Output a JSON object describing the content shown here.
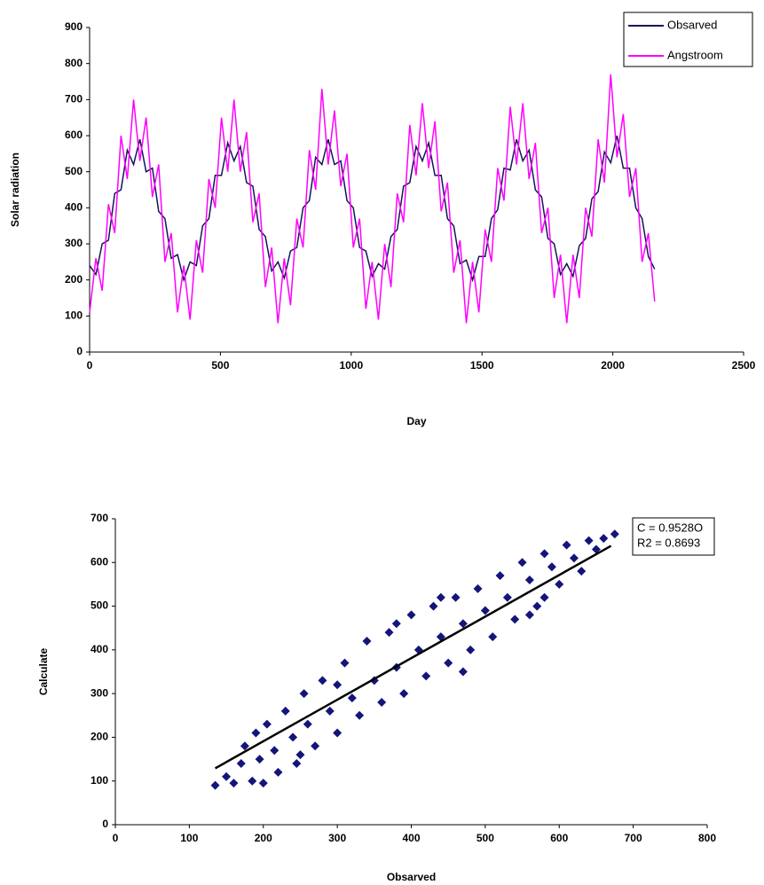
{
  "charts": [
    {
      "type": "line",
      "xlabel": "Day",
      "ylabel": "Solar radiation",
      "xlim": [
        0,
        2500
      ],
      "xticks": [
        0,
        500,
        1000,
        1500,
        2000,
        2500
      ],
      "ylim": [
        0,
        900
      ],
      "yticks": [
        0,
        100,
        200,
        300,
        400,
        500,
        600,
        700,
        800,
        900
      ],
      "legend": "upper right",
      "x": [
        0,
        24,
        48,
        72,
        96,
        120,
        144,
        168,
        192,
        216,
        240,
        264,
        288,
        312,
        336,
        360,
        384,
        408,
        432,
        456,
        480,
        504,
        528,
        552,
        576,
        600,
        624,
        648,
        672,
        696,
        720,
        744,
        768,
        792,
        816,
        840,
        864,
        888,
        912,
        936,
        960,
        984,
        1008,
        1032,
        1056,
        1080,
        1104,
        1128,
        1152,
        1176,
        1200,
        1224,
        1248,
        1272,
        1296,
        1320,
        1344,
        1368,
        1392,
        1416,
        1440,
        1464,
        1488,
        1512,
        1536,
        1560,
        1584,
        1608,
        1632,
        1656,
        1680,
        1704,
        1728,
        1752,
        1776,
        1800,
        1824,
        1848,
        1872,
        1896,
        1920,
        1944,
        1968,
        1992,
        2016,
        2040,
        2064,
        2088,
        2112,
        2136,
        2160
      ],
      "series": [
        {
          "name": "Obsarved",
          "color": "#14145a",
          "values": [
            240,
            215,
            300,
            310,
            440,
            450,
            560,
            520,
            590,
            500,
            510,
            390,
            370,
            260,
            270,
            200,
            250,
            240,
            350,
            370,
            490,
            490,
            580,
            530,
            570,
            470,
            460,
            340,
            320,
            225,
            250,
            205,
            280,
            290,
            400,
            420,
            540,
            520,
            590,
            520,
            530,
            420,
            400,
            290,
            280,
            210,
            245,
            230,
            320,
            340,
            460,
            470,
            570,
            530,
            580,
            490,
            490,
            370,
            350,
            245,
            255,
            200,
            265,
            265,
            370,
            395,
            510,
            505,
            590,
            530,
            560,
            450,
            430,
            315,
            300,
            215,
            245,
            210,
            295,
            315,
            425,
            445,
            555,
            525,
            600,
            510,
            510,
            400,
            370,
            265,
            230
          ]
        },
        {
          "name": "Angstroom",
          "color": "#ff00ff",
          "values": [
            110,
            260,
            170,
            410,
            330,
            600,
            480,
            700,
            530,
            650,
            430,
            520,
            250,
            330,
            110,
            240,
            90,
            310,
            220,
            480,
            400,
            650,
            500,
            700,
            500,
            610,
            360,
            440,
            180,
            290,
            80,
            260,
            130,
            370,
            290,
            560,
            450,
            730,
            520,
            670,
            460,
            550,
            290,
            370,
            120,
            250,
            90,
            300,
            180,
            440,
            360,
            630,
            490,
            690,
            510,
            640,
            390,
            470,
            220,
            310,
            80,
            250,
            110,
            340,
            250,
            510,
            420,
            680,
            520,
            690,
            480,
            580,
            330,
            400,
            150,
            270,
            80,
            270,
            150,
            400,
            320,
            590,
            470,
            770,
            540,
            660,
            430,
            510,
            250,
            330,
            140
          ]
        }
      ]
    },
    {
      "type": "scatter",
      "xlabel": "Obsarved",
      "ylabel": "Calculate",
      "xlim": [
        0,
        800
      ],
      "xticks": [
        0,
        100,
        200,
        300,
        400,
        500,
        600,
        700,
        800
      ],
      "ylim": [
        0,
        700
      ],
      "yticks": [
        0,
        100,
        200,
        300,
        400,
        500,
        600,
        700
      ],
      "annotations": [
        "C = 0.9528O",
        "R2 = 0.8693"
      ],
      "color": "#14147a",
      "x": [
        135,
        150,
        160,
        170,
        175,
        185,
        190,
        195,
        200,
        205,
        215,
        220,
        230,
        240,
        245,
        255,
        260,
        270,
        280,
        290,
        300,
        310,
        320,
        330,
        340,
        350,
        360,
        370,
        380,
        390,
        400,
        410,
        420,
        430,
        440,
        450,
        460,
        470,
        480,
        490,
        500,
        510,
        520,
        530,
        540,
        550,
        560,
        570,
        580,
        590,
        600,
        610,
        620,
        630,
        640,
        650,
        660,
        675,
        440,
        560,
        250,
        300,
        470,
        380,
        580
      ],
      "y": [
        90,
        110,
        95,
        140,
        180,
        100,
        210,
        150,
        95,
        230,
        170,
        120,
        260,
        200,
        140,
        300,
        230,
        180,
        330,
        260,
        210,
        370,
        290,
        250,
        420,
        330,
        280,
        440,
        360,
        300,
        480,
        400,
        340,
        500,
        430,
        370,
        520,
        460,
        400,
        540,
        490,
        430,
        570,
        520,
        470,
        600,
        560,
        500,
        620,
        590,
        550,
        640,
        610,
        580,
        650,
        630,
        655,
        665,
        520,
        480,
        160,
        320,
        350,
        460,
        520
      ],
      "trendline": {
        "x": [
          135,
          670
        ],
        "y": [
          129,
          638
        ]
      }
    }
  ]
}
